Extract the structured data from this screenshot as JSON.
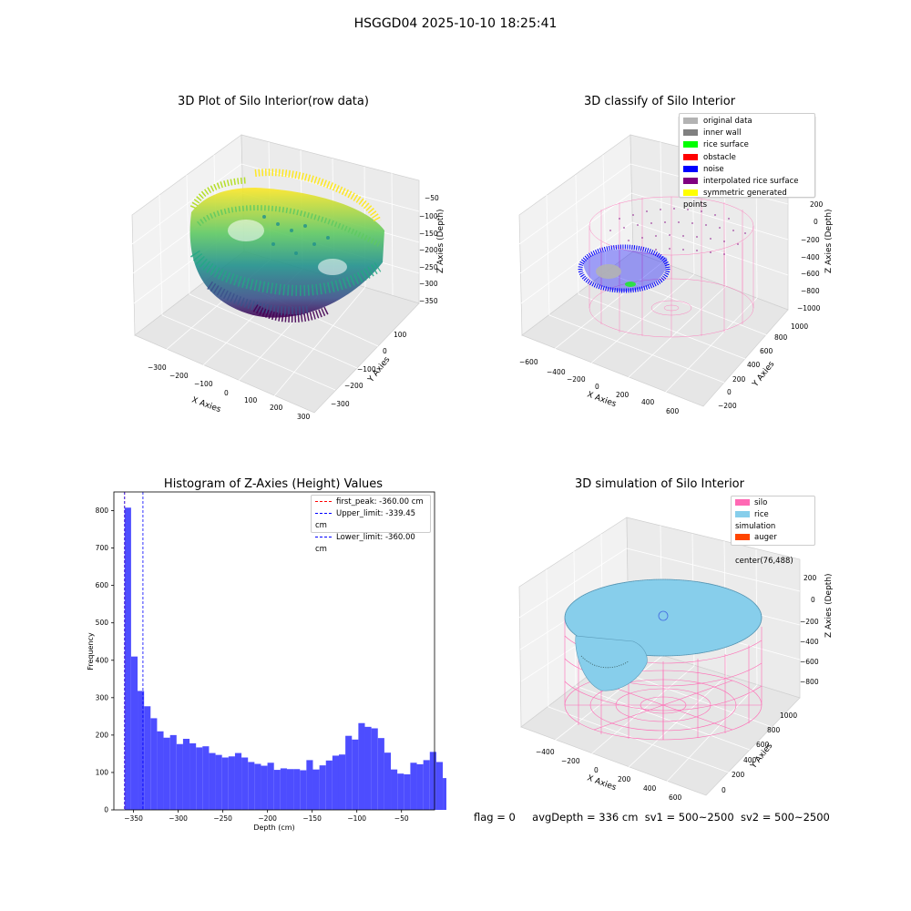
{
  "figure": {
    "title": "HSGGD04 2025-10-10 18:25:41",
    "status": {
      "flag": "flag = 0",
      "avg_depth": "avgDepth = 336 cm",
      "sv1": "sv1 = 500~2500",
      "sv2": "sv2 = 500~2500"
    }
  },
  "chart_data": [
    {
      "type": "scatter",
      "title": "3D Plot of Silo Interior(row data)",
      "xlabel": "X Axies",
      "ylabel": "Y Axies",
      "zlabel": "Z Axies (Depth)",
      "x_ticks": [
        "−300",
        "−200",
        "−100",
        "0",
        "100",
        "200",
        "300"
      ],
      "y_ticks": [
        "−300",
        "−200",
        "−100",
        "0",
        "100"
      ],
      "z_ticks": [
        "−50",
        "−100",
        "−150",
        "−200",
        "−250",
        "−300",
        "−350"
      ],
      "xlim": [
        -350,
        320
      ],
      "ylim": [
        -330,
        150
      ],
      "zlim": [
        -370,
        -20
      ],
      "colormap": "viridis",
      "colors": {
        "high": "#fde725",
        "mid": "#21918c",
        "low": "#440154"
      }
    },
    {
      "type": "scatter",
      "title": "3D classify of Silo Interior",
      "xlabel": "X Axies",
      "ylabel": "Y Axies",
      "zlabel": "Z Axies (Depth)",
      "x_ticks": [
        "−600",
        "−400",
        "−200",
        "0",
        "200",
        "400",
        "600"
      ],
      "y_ticks": [
        "−200",
        "0",
        "200",
        "400",
        "600",
        "800",
        "1000"
      ],
      "z_ticks": [
        "200",
        "0",
        "−200",
        "−400",
        "−600",
        "−800",
        "−1000"
      ],
      "legend": [
        {
          "label": "original data",
          "color": "#b3b3b3"
        },
        {
          "label": "inner wall",
          "color": "#808080"
        },
        {
          "label": "rice surface",
          "color": "#00ff00"
        },
        {
          "label": "obstacle",
          "color": "#ff0000"
        },
        {
          "label": "noise",
          "color": "#0000ff"
        },
        {
          "label": "interpolated rice surface",
          "color": "#800080"
        },
        {
          "label": "symmetric generated points",
          "color": "#ffff00"
        }
      ],
      "legend_position": "top-right"
    },
    {
      "type": "bar",
      "title": "Histogram of Z-Axies (Height) Values",
      "xlabel": "Depth (cm)",
      "ylabel": "Frequency",
      "xlim": [
        -372,
        -13
      ],
      "ylim": [
        0,
        850
      ],
      "x_ticks": [
        -350,
        -300,
        -250,
        -200,
        -150,
        -100,
        -50
      ],
      "x_tick_labels": [
        "−350",
        "−300",
        "−250",
        "−200",
        "−150",
        "−100",
        "−50"
      ],
      "y_ticks": [
        0,
        100,
        200,
        300,
        400,
        500,
        600,
        700,
        800
      ],
      "bin_start": -360,
      "bin_width": 7.27,
      "values": [
        808,
        410,
        318,
        277,
        245,
        210,
        193,
        200,
        176,
        190,
        178,
        167,
        170,
        152,
        147,
        140,
        143,
        152,
        140,
        128,
        123,
        118,
        126,
        107,
        111,
        109,
        109,
        106,
        133,
        108,
        119,
        132,
        145,
        148,
        198,
        188,
        232,
        222,
        218,
        192,
        153,
        108,
        97,
        95,
        126,
        122,
        133,
        155,
        128,
        85
      ],
      "bar_color": "#4d4dff",
      "lines": [
        {
          "label": "first_peak: -360.00 cm",
          "value": -360.0,
          "color": "#ff0000"
        },
        {
          "label": "Upper_limit: -339.45 cm",
          "value": -339.45,
          "color": "#0000ff"
        },
        {
          "label": "Lower_limit: -360.00 cm",
          "value": -360.0,
          "color": "#0000ff"
        }
      ],
      "legend_position": "top-right"
    },
    {
      "type": "surface",
      "title": "3D simulation of Silo Interior",
      "xlabel": "X Axies",
      "ylabel": "Y Axies",
      "zlabel": "Z Axies (Depth)",
      "x_ticks": [
        "−400",
        "−200",
        "0",
        "200",
        "400",
        "600"
      ],
      "y_ticks": [
        "0",
        "200",
        "400",
        "600",
        "800",
        "1000"
      ],
      "z_ticks": [
        "200",
        "0",
        "−200",
        "−400",
        "−600",
        "−800"
      ],
      "legend": [
        {
          "label": "silo",
          "color": "#ff69b4"
        },
        {
          "label": "rice simulation",
          "color": "#87ceeb"
        },
        {
          "label": "auger",
          "color": "#ff4500"
        },
        {
          "label": "center(76,488)",
          "color": ""
        }
      ],
      "legend_position": "top-right"
    }
  ]
}
